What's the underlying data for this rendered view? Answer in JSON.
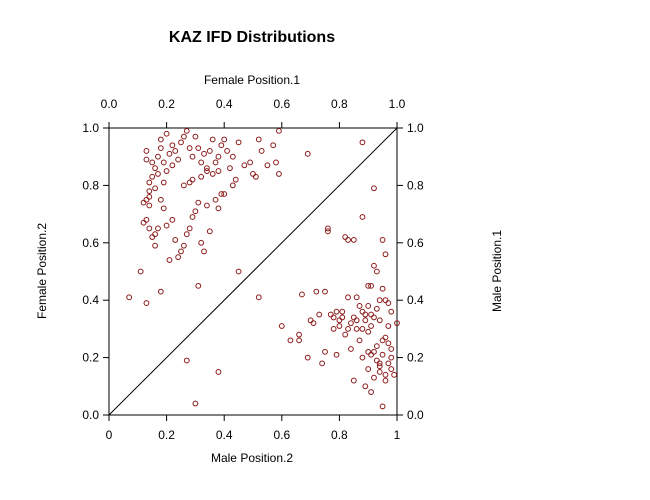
{
  "chart_data": {
    "type": "scatter",
    "title": "KAZ IFD Distributions",
    "xlabel_bottom": "Male Position.2",
    "xlabel_top": "Female Position.1",
    "ylabel_left": "Female Position.2",
    "ylabel_right": "Male Position.1",
    "xlim": [
      0,
      1
    ],
    "ylim": [
      0,
      1
    ],
    "bottom_ticks": [
      "0",
      "0.2",
      "0.4",
      "0.6",
      "0.8",
      "1"
    ],
    "top_ticks": [
      "0.0",
      "0.2",
      "0.4",
      "0.6",
      "0.8",
      "1.0"
    ],
    "left_ticks": [
      "0.0",
      "0.2",
      "0.4",
      "0.6",
      "0.8",
      "1.0"
    ],
    "right_ticks": [
      "0.0",
      "0.2",
      "0.4",
      "0.6",
      "0.8",
      "1.0"
    ],
    "tick_values": [
      0,
      0.2,
      0.4,
      0.6,
      0.8,
      1.0
    ],
    "diagonal": [
      [
        0,
        0
      ],
      [
        1,
        1
      ]
    ],
    "point_color": "#8b1a1a",
    "series": [
      {
        "values": [
          [
            0.07,
            0.41
          ],
          [
            0.11,
            0.5
          ],
          [
            0.13,
            0.39
          ],
          [
            0.12,
            0.67
          ],
          [
            0.12,
            0.74
          ],
          [
            0.13,
            0.75
          ],
          [
            0.14,
            0.76
          ],
          [
            0.14,
            0.73
          ],
          [
            0.13,
            0.89
          ],
          [
            0.13,
            0.92
          ],
          [
            0.14,
            0.78
          ],
          [
            0.14,
            0.81
          ],
          [
            0.15,
            0.83
          ],
          [
            0.15,
            0.88
          ],
          [
            0.16,
            0.86
          ],
          [
            0.16,
            0.79
          ],
          [
            0.17,
            0.84
          ],
          [
            0.17,
            0.9
          ],
          [
            0.18,
            0.93
          ],
          [
            0.18,
            0.96
          ],
          [
            0.19,
            0.88
          ],
          [
            0.19,
            0.81
          ],
          [
            0.2,
            0.85
          ],
          [
            0.2,
            0.98
          ],
          [
            0.21,
            0.91
          ],
          [
            0.22,
            0.94
          ],
          [
            0.22,
            0.87
          ],
          [
            0.23,
            0.92
          ],
          [
            0.24,
            0.89
          ],
          [
            0.25,
            0.95
          ],
          [
            0.26,
            0.97
          ],
          [
            0.27,
            0.99
          ],
          [
            0.28,
            0.93
          ],
          [
            0.29,
            0.9
          ],
          [
            0.3,
            0.97
          ],
          [
            0.31,
            0.93
          ],
          [
            0.32,
            0.88
          ],
          [
            0.33,
            0.91
          ],
          [
            0.34,
            0.85
          ],
          [
            0.35,
            0.92
          ],
          [
            0.36,
            0.96
          ],
          [
            0.37,
            0.88
          ],
          [
            0.38,
            0.9
          ],
          [
            0.39,
            0.94
          ],
          [
            0.4,
            0.96
          ],
          [
            0.41,
            0.92
          ],
          [
            0.42,
            0.86
          ],
          [
            0.43,
            0.9
          ],
          [
            0.44,
            0.82
          ],
          [
            0.45,
            0.95
          ],
          [
            0.47,
            0.87
          ],
          [
            0.49,
            0.88
          ],
          [
            0.5,
            0.84
          ],
          [
            0.51,
            0.83
          ],
          [
            0.52,
            0.96
          ],
          [
            0.53,
            0.92
          ],
          [
            0.55,
            0.87
          ],
          [
            0.57,
            0.94
          ],
          [
            0.59,
            0.99
          ],
          [
            0.59,
            0.84
          ],
          [
            0.58,
            0.88
          ],
          [
            0.69,
            0.91
          ],
          [
            0.88,
            0.95
          ],
          [
            0.16,
            0.63
          ],
          [
            0.17,
            0.65
          ],
          [
            0.18,
            0.75
          ],
          [
            0.19,
            0.72
          ],
          [
            0.2,
            0.66
          ],
          [
            0.21,
            0.54
          ],
          [
            0.22,
            0.68
          ],
          [
            0.23,
            0.61
          ],
          [
            0.24,
            0.55
          ],
          [
            0.25,
            0.57
          ],
          [
            0.26,
            0.59
          ],
          [
            0.27,
            0.63
          ],
          [
            0.28,
            0.65
          ],
          [
            0.29,
            0.69
          ],
          [
            0.3,
            0.71
          ],
          [
            0.31,
            0.74
          ],
          [
            0.32,
            0.6
          ],
          [
            0.33,
            0.57
          ],
          [
            0.34,
            0.73
          ],
          [
            0.35,
            0.64
          ],
          [
            0.37,
            0.75
          ],
          [
            0.38,
            0.72
          ],
          [
            0.39,
            0.77
          ],
          [
            0.4,
            0.77
          ],
          [
            0.43,
            0.8
          ],
          [
            0.45,
            0.5
          ],
          [
            0.13,
            0.68
          ],
          [
            0.14,
            0.65
          ],
          [
            0.15,
            0.62
          ],
          [
            0.16,
            0.59
          ],
          [
            0.18,
            0.43
          ],
          [
            0.31,
            0.45
          ],
          [
            0.27,
            0.19
          ],
          [
            0.38,
            0.15
          ],
          [
            0.3,
            0.04
          ],
          [
            0.26,
            0.8
          ],
          [
            0.28,
            0.81
          ],
          [
            0.29,
            0.82
          ],
          [
            0.32,
            0.83
          ],
          [
            0.34,
            0.86
          ],
          [
            0.36,
            0.84
          ],
          [
            0.38,
            0.85
          ],
          [
            0.52,
            0.41
          ],
          [
            0.6,
            0.31
          ],
          [
            0.63,
            0.26
          ],
          [
            0.66,
            0.28
          ],
          [
            0.66,
            0.26
          ],
          [
            0.67,
            0.42
          ],
          [
            0.69,
            0.2
          ],
          [
            0.7,
            0.33
          ],
          [
            0.72,
            0.43
          ],
          [
            0.73,
            0.35
          ],
          [
            0.74,
            0.18
          ],
          [
            0.75,
            0.43
          ],
          [
            0.76,
            0.65
          ],
          [
            0.76,
            0.64
          ],
          [
            0.77,
            0.35
          ],
          [
            0.78,
            0.3
          ],
          [
            0.78,
            0.34
          ],
          [
            0.79,
            0.21
          ],
          [
            0.8,
            0.33
          ],
          [
            0.8,
            0.31
          ],
          [
            0.81,
            0.36
          ],
          [
            0.82,
            0.28
          ],
          [
            0.82,
            0.62
          ],
          [
            0.83,
            0.61
          ],
          [
            0.83,
            0.41
          ],
          [
            0.84,
            0.32
          ],
          [
            0.84,
            0.23
          ],
          [
            0.85,
            0.12
          ],
          [
            0.85,
            0.61
          ],
          [
            0.85,
            0.34
          ],
          [
            0.86,
            0.41
          ],
          [
            0.86,
            0.3
          ],
          [
            0.87,
            0.38
          ],
          [
            0.87,
            0.26
          ],
          [
            0.88,
            0.69
          ],
          [
            0.88,
            0.3
          ],
          [
            0.88,
            0.2
          ],
          [
            0.89,
            0.35
          ],
          [
            0.89,
            0.33
          ],
          [
            0.9,
            0.45
          ],
          [
            0.9,
            0.38
          ],
          [
            0.9,
            0.29
          ],
          [
            0.9,
            0.22
          ],
          [
            0.91,
            0.45
          ],
          [
            0.91,
            0.35
          ],
          [
            0.91,
            0.31
          ],
          [
            0.91,
            0.21
          ],
          [
            0.91,
            0.08
          ],
          [
            0.92,
            0.79
          ],
          [
            0.92,
            0.52
          ],
          [
            0.92,
            0.34
          ],
          [
            0.92,
            0.13
          ],
          [
            0.93,
            0.5
          ],
          [
            0.93,
            0.37
          ],
          [
            0.93,
            0.24
          ],
          [
            0.93,
            0.19
          ],
          [
            0.94,
            0.4
          ],
          [
            0.94,
            0.33
          ],
          [
            0.94,
            0.17
          ],
          [
            0.94,
            0.15
          ],
          [
            0.95,
            0.61
          ],
          [
            0.95,
            0.44
          ],
          [
            0.95,
            0.26
          ],
          [
            0.95,
            0.21
          ],
          [
            0.95,
            0.03
          ],
          [
            0.96,
            0.56
          ],
          [
            0.96,
            0.4
          ],
          [
            0.96,
            0.27
          ],
          [
            0.96,
            0.14
          ],
          [
            0.97,
            0.31
          ],
          [
            0.97,
            0.25
          ],
          [
            0.97,
            0.18
          ],
          [
            0.97,
            0.39
          ],
          [
            0.98,
            0.36
          ],
          [
            0.98,
            0.23
          ],
          [
            0.98,
            0.16
          ],
          [
            0.99,
            0.14
          ],
          [
            1.0,
            0.32
          ],
          [
            0.89,
            0.1
          ],
          [
            0.9,
            0.16
          ],
          [
            0.92,
            0.22
          ],
          [
            0.94,
            0.18
          ],
          [
            0.96,
            0.12
          ],
          [
            0.98,
            0.2
          ],
          [
            0.86,
            0.33
          ],
          [
            0.88,
            0.36
          ],
          [
            0.79,
            0.36
          ],
          [
            0.81,
            0.34
          ],
          [
            0.83,
            0.3
          ],
          [
            0.71,
            0.32
          ],
          [
            0.75,
            0.22
          ]
        ]
      }
    ]
  }
}
